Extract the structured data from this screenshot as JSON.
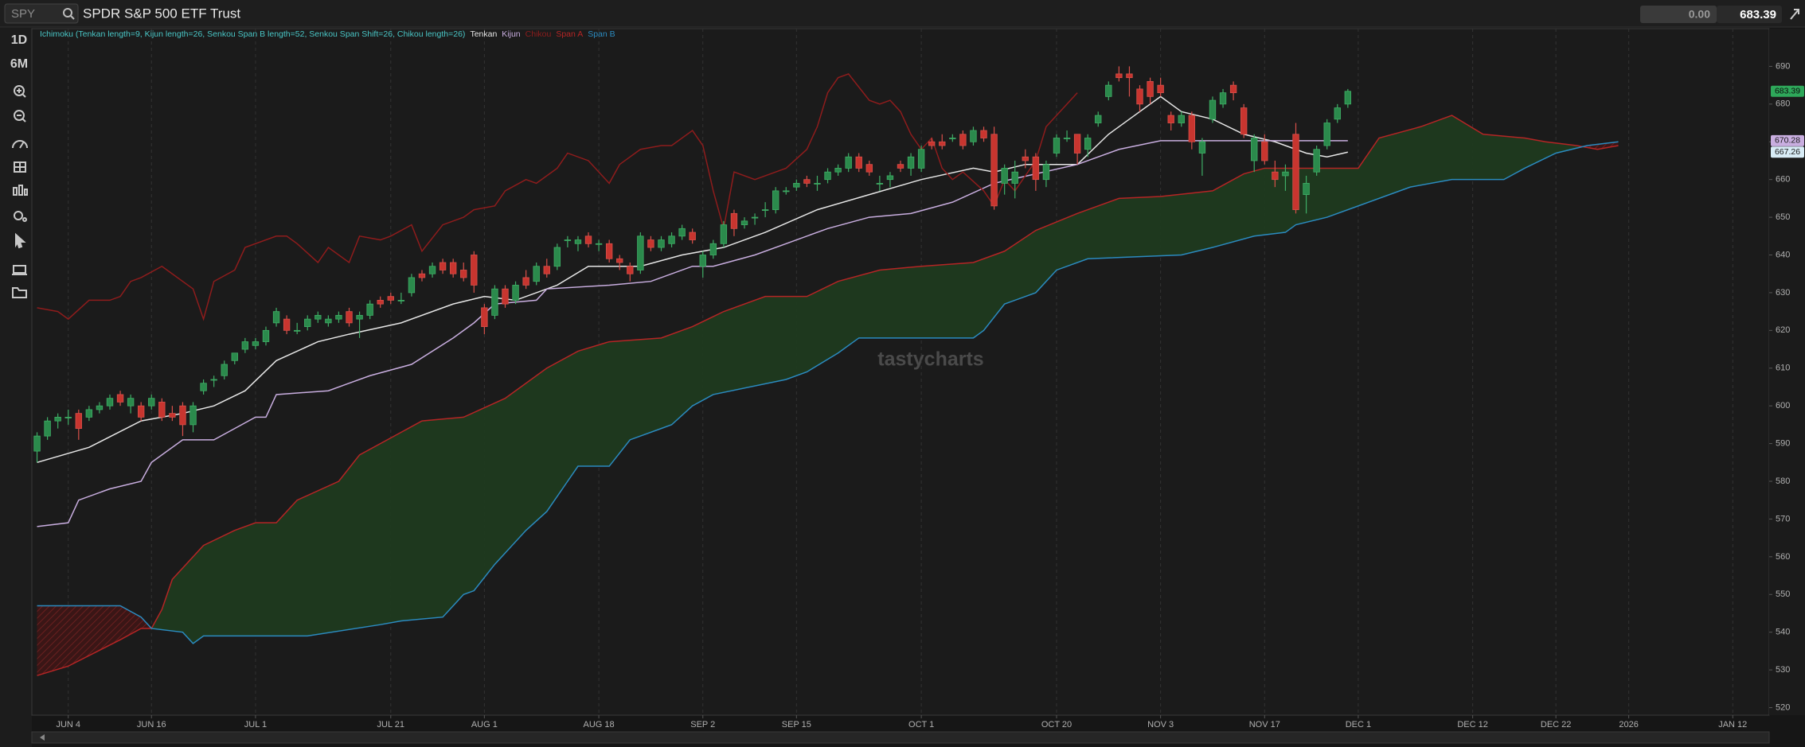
{
  "header": {
    "symbol": "SPY",
    "name": "SPDR S&P 500 ETF Trust",
    "change": "0.00"
  },
  "sidebar": {
    "buttons": [
      "1D",
      "6M"
    ]
  },
  "watermark": "tastycharts",
  "chart_data": {
    "type": "candlestick",
    "study": "Ichimoku (Tenkan length=9, Kijun length=26, Senkou Span B length=52, Senkou Span Shift=26, Chikou length=26)",
    "up_color": "#2b8a4c",
    "down_color": "#c8352f",
    "ohlc": [
      [
        588,
        593,
        585,
        592
      ],
      [
        592,
        597,
        591,
        596
      ],
      [
        596,
        598,
        594,
        597
      ],
      [
        597,
        599,
        595,
        597
      ],
      [
        598,
        599,
        591,
        594
      ],
      [
        597,
        600,
        596,
        599
      ],
      [
        599,
        601,
        598,
        600
      ],
      [
        600,
        603,
        599,
        602
      ],
      [
        603,
        604,
        600,
        601
      ],
      [
        600,
        603,
        598,
        602
      ],
      [
        600,
        601,
        596,
        597
      ],
      [
        600,
        603,
        599,
        602
      ],
      [
        601,
        602,
        596,
        597
      ],
      [
        598,
        600,
        596,
        597
      ],
      [
        600,
        601,
        592,
        595
      ],
      [
        595,
        601,
        593,
        600
      ],
      [
        604,
        607,
        603,
        606
      ],
      [
        607,
        608,
        605,
        607
      ],
      [
        608,
        612,
        607,
        611
      ],
      [
        612,
        614,
        611,
        614
      ],
      [
        615,
        618,
        614,
        617
      ],
      [
        616,
        618,
        615,
        617
      ],
      [
        617,
        621,
        616,
        620
      ],
      [
        622,
        626,
        621,
        625
      ],
      [
        623,
        624,
        619,
        620
      ],
      [
        620,
        622,
        619,
        620
      ],
      [
        621,
        624,
        620,
        623
      ],
      [
        623,
        625,
        622,
        624
      ],
      [
        622,
        624,
        621,
        623
      ],
      [
        623,
        625,
        622,
        624
      ],
      [
        625,
        626,
        621,
        622
      ],
      [
        623,
        625,
        618,
        624
      ],
      [
        624,
        628,
        623,
        627
      ],
      [
        628,
        629,
        626,
        627
      ],
      [
        629,
        630,
        627,
        628
      ],
      [
        628,
        630,
        627,
        628
      ],
      [
        630,
        635,
        629,
        634
      ],
      [
        635,
        636,
        633,
        634
      ],
      [
        635,
        638,
        634,
        637
      ],
      [
        638,
        639,
        635,
        636
      ],
      [
        638,
        639,
        634,
        635
      ],
      [
        636,
        638,
        633,
        634
      ],
      [
        640,
        641,
        630,
        632
      ],
      [
        626,
        627,
        619,
        621
      ],
      [
        624,
        632,
        623,
        631
      ],
      [
        631,
        632,
        626,
        627
      ],
      [
        628,
        633,
        627,
        632
      ],
      [
        634,
        636,
        631,
        632
      ],
      [
        633,
        638,
        632,
        637
      ],
      [
        637,
        639,
        634,
        635
      ],
      [
        637,
        643,
        636,
        642
      ],
      [
        644,
        645,
        642,
        644
      ],
      [
        643,
        645,
        641,
        644
      ],
      [
        645,
        646,
        642,
        643
      ],
      [
        643,
        644,
        641,
        643
      ],
      [
        643,
        644,
        638,
        639
      ],
      [
        639,
        640,
        636,
        638
      ],
      [
        637,
        638,
        633,
        635
      ],
      [
        636,
        646,
        635,
        645
      ],
      [
        644,
        645,
        641,
        642
      ],
      [
        642,
        645,
        641,
        644
      ],
      [
        643,
        646,
        642,
        645
      ],
      [
        645,
        648,
        644,
        647
      ],
      [
        646,
        647,
        643,
        644
      ],
      [
        637,
        641,
        634,
        640
      ],
      [
        640,
        644,
        639,
        643
      ],
      [
        643,
        649,
        642,
        648
      ],
      [
        651,
        652,
        645,
        647
      ],
      [
        648,
        650,
        647,
        649
      ],
      [
        650,
        651,
        648,
        650
      ],
      [
        652,
        654,
        650,
        652
      ],
      [
        652,
        658,
        651,
        657
      ],
      [
        657,
        658,
        656,
        657
      ],
      [
        658,
        660,
        657,
        659
      ],
      [
        660,
        661,
        658,
        659
      ],
      [
        659,
        661,
        657,
        659
      ],
      [
        660,
        663,
        659,
        662
      ],
      [
        662,
        664,
        661,
        663
      ],
      [
        663,
        667,
        662,
        666
      ],
      [
        666,
        667,
        662,
        663
      ],
      [
        664,
        665,
        661,
        662
      ],
      [
        659,
        661,
        657,
        659
      ],
      [
        660,
        662,
        658,
        661
      ],
      [
        664,
        665,
        662,
        663
      ],
      [
        663,
        667,
        661,
        666
      ],
      [
        663,
        669,
        662,
        668
      ],
      [
        670,
        671,
        668,
        669
      ],
      [
        670,
        672,
        668,
        669
      ],
      [
        671,
        672,
        670,
        671
      ],
      [
        672,
        673,
        668,
        669
      ],
      [
        670,
        674,
        669,
        673
      ],
      [
        673,
        674,
        670,
        671
      ],
      [
        672,
        674,
        652,
        653
      ],
      [
        659,
        664,
        656,
        663
      ],
      [
        659,
        665,
        655,
        662
      ],
      [
        666,
        668,
        663,
        665
      ],
      [
        666,
        667,
        657,
        660
      ],
      [
        660,
        665,
        658,
        664
      ],
      [
        667,
        672,
        666,
        671
      ],
      [
        671,
        673,
        670,
        671
      ],
      [
        672,
        672,
        664,
        667
      ],
      [
        668,
        672,
        666,
        671
      ],
      [
        675,
        678,
        674,
        677
      ],
      [
        682,
        686,
        681,
        685
      ],
      [
        688,
        690,
        686,
        687
      ],
      [
        688,
        690,
        682,
        687
      ],
      [
        684,
        685,
        678,
        680
      ],
      [
        686,
        687,
        680,
        682
      ],
      [
        685,
        687,
        682,
        683
      ],
      [
        677,
        678,
        673,
        675
      ],
      [
        675,
        678,
        674,
        677
      ],
      [
        677,
        678,
        668,
        670
      ],
      [
        667,
        671,
        661,
        670
      ],
      [
        676,
        682,
        675,
        681
      ],
      [
        680,
        684,
        679,
        683
      ],
      [
        685,
        686,
        681,
        683
      ],
      [
        679,
        680,
        671,
        672
      ],
      [
        665,
        672,
        662,
        671
      ],
      [
        670,
        672,
        664,
        665
      ],
      [
        662,
        665,
        658,
        660
      ],
      [
        661,
        664,
        657,
        662
      ],
      [
        672,
        675,
        651,
        652
      ],
      [
        656,
        661,
        651,
        659
      ],
      [
        662,
        669,
        661,
        668
      ],
      [
        669,
        676,
        668,
        675
      ],
      [
        676,
        680,
        675,
        679
      ],
      [
        680,
        684,
        679,
        683.39
      ]
    ],
    "series": [
      {
        "name": "Tenkan",
        "color": "#e6e6e6",
        "x": [
          0,
          5,
          10,
          14,
          17,
          20,
          23,
          27,
          30,
          35,
          40,
          43,
          46,
          50,
          53,
          58,
          62,
          66,
          70,
          75,
          80,
          85,
          90,
          92,
          95,
          100,
          103,
          105,
          108,
          110,
          113,
          116,
          119,
          122,
          124,
          126
        ],
        "values": [
          585,
          589,
          596,
          598,
          600,
          604,
          612,
          617,
          619,
          622,
          627,
          629,
          628,
          632,
          637,
          637,
          640,
          642,
          646,
          652,
          656,
          660,
          663,
          662,
          664,
          664,
          672,
          676,
          682,
          678,
          676,
          672,
          670,
          667,
          666,
          667.26
        ]
      },
      {
        "name": "Kijun",
        "color": "#c9aee0",
        "x": [
          0,
          3,
          4,
          7,
          10,
          11,
          14,
          17,
          19,
          21,
          22,
          23,
          28,
          30,
          32,
          36,
          40,
          42,
          44,
          48,
          49,
          55,
          59,
          63,
          65,
          69,
          72,
          76,
          80,
          84,
          88,
          92,
          100,
          104,
          108,
          126
        ],
        "values": [
          568,
          569,
          575,
          578,
          580,
          585,
          591,
          591,
          594,
          597,
          597,
          603,
          604,
          606,
          608,
          611,
          618,
          622,
          627,
          628,
          631,
          632,
          633,
          637,
          637,
          640,
          643,
          647,
          650,
          651,
          654,
          659,
          664,
          668,
          670.28,
          670.28
        ]
      },
      {
        "name": "Chikou",
        "color": "#8e1c1c",
        "x": [
          0,
          2,
          3,
          5,
          7,
          8,
          9,
          10,
          12,
          13,
          15,
          16,
          17,
          19,
          20,
          23,
          24,
          25,
          27,
          28,
          30,
          31,
          33,
          34,
          36,
          37,
          39,
          41,
          42,
          44,
          45,
          47,
          48,
          50,
          51,
          53,
          55,
          56,
          58,
          60,
          61,
          63,
          64,
          65,
          66,
          67,
          69,
          71,
          72,
          74,
          75,
          76,
          77,
          78,
          80,
          81,
          82,
          83,
          84,
          85,
          86,
          87,
          88,
          89,
          91,
          92,
          93,
          94,
          96,
          97,
          99,
          100
        ],
        "values": [
          626,
          625,
          623,
          628,
          628,
          629,
          633,
          634,
          637,
          635,
          631,
          623,
          633,
          636,
          642,
          645,
          645,
          643,
          638,
          642,
          638,
          645,
          644,
          645,
          648,
          641,
          648,
          650,
          652,
          653,
          657,
          660,
          659,
          663,
          667,
          665,
          659,
          664,
          668,
          669,
          669,
          673,
          669,
          657,
          647,
          662,
          660,
          662,
          663,
          668,
          674,
          683,
          687,
          688,
          681,
          680,
          681,
          678,
          672,
          668,
          671,
          663,
          660,
          662,
          657,
          653,
          660,
          657,
          665,
          674,
          680,
          683
        ]
      },
      {
        "name": "Span A",
        "color": "#b52525",
        "x": [
          0,
          3,
          8,
          10,
          11,
          12,
          13,
          16,
          19,
          21,
          23,
          25,
          29,
          31,
          35,
          37,
          41,
          45,
          49,
          52,
          55,
          60,
          63,
          66,
          70,
          74,
          77,
          81,
          85,
          90,
          93,
          96,
          100,
          104,
          108,
          113,
          116,
          118,
          127,
          129,
          133,
          136,
          139,
          143,
          145,
          148,
          150,
          152
        ],
        "values": [
          528.5,
          531,
          538,
          541,
          541,
          546,
          554,
          563,
          567,
          569,
          569,
          575,
          580,
          587,
          593,
          596,
          597,
          602,
          610,
          614.5,
          617,
          618,
          621,
          625,
          629,
          629,
          633,
          636,
          637,
          638,
          641,
          646.5,
          651,
          655,
          655.5,
          657,
          661.5,
          663,
          663,
          671,
          674,
          677,
          672,
          671,
          670,
          669,
          668,
          669
        ]
      },
      {
        "name": "Span B",
        "color": "#2b8bc0",
        "x": [
          0,
          8,
          10,
          11,
          14,
          15,
          16,
          26,
          33,
          35,
          39,
          41,
          42,
          44,
          47,
          49,
          51,
          52,
          55,
          57,
          60,
          61,
          63,
          65,
          72,
          74,
          77,
          79,
          90,
          91,
          93,
          96,
          98,
          101,
          110,
          113,
          117,
          120,
          121,
          124,
          127,
          130,
          132,
          136,
          141,
          143,
          146,
          149,
          152
        ],
        "values": [
          547,
          547,
          544,
          541,
          540,
          537,
          539,
          539,
          542,
          543,
          544,
          550,
          551,
          558,
          567,
          572,
          580,
          584,
          584,
          591,
          594,
          595,
          600,
          603,
          607,
          609,
          614,
          618,
          618,
          620,
          627,
          630,
          636,
          639,
          640,
          642,
          645,
          646,
          648,
          650,
          653,
          656,
          658,
          660,
          660,
          663,
          667,
          669,
          670
        ]
      }
    ],
    "xlim": [
      -0.5,
      166.5
    ],
    "xticks": [
      {
        "value": 3,
        "label": "JUN 4"
      },
      {
        "value": 11,
        "label": "JUN 16"
      },
      {
        "value": 21,
        "label": "JUL 1"
      },
      {
        "value": 34,
        "label": "JUL 21"
      },
      {
        "value": 43,
        "label": "AUG 1"
      },
      {
        "value": 54,
        "label": "AUG 18"
      },
      {
        "value": 64,
        "label": "SEP 2"
      },
      {
        "value": 73,
        "label": "SEP 15"
      },
      {
        "value": 85,
        "label": "OCT 1"
      },
      {
        "value": 98,
        "label": "OCT 20"
      },
      {
        "value": 108,
        "label": "NOV 3"
      },
      {
        "value": 118,
        "label": "NOV 17"
      },
      {
        "value": 127,
        "label": "DEC 1"
      },
      {
        "value": 138,
        "label": "DEC 12"
      },
      {
        "value": 146,
        "label": "DEC 22"
      },
      {
        "value": 153,
        "label": "2026"
      },
      {
        "value": 163,
        "label": "JAN 12"
      }
    ],
    "ylim": [
      518,
      700
    ],
    "yticks": [
      520,
      530,
      540,
      550,
      560,
      570,
      580,
      590,
      600,
      610,
      620,
      630,
      640,
      650,
      660,
      670,
      680,
      690
    ],
    "grid": "x"
  }
}
